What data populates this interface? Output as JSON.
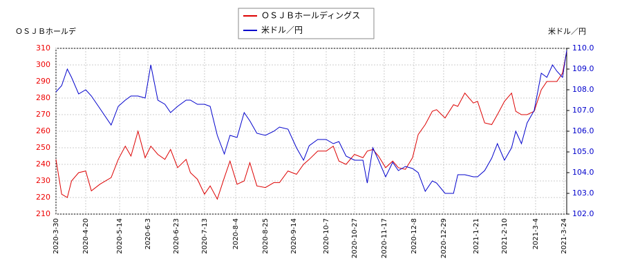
{
  "chart_data": {
    "type": "line",
    "y_label": "ＯＳＪＢホールデ",
    "y2_label": "米ドル／円",
    "x": [
      "2020-3-30",
      "2020-4-3",
      "2020-4-7",
      "2020-4-10",
      "2020-4-15",
      "2020-4-20",
      "2020-4-24",
      "2020-4-30",
      "2020-5-8",
      "2020-5-13",
      "2020-5-18",
      "2020-5-22",
      "2020-5-27",
      "2020-6-1",
      "2020-6-5",
      "2020-6-10",
      "2020-6-15",
      "2020-6-19",
      "2020-6-24",
      "2020-6-30",
      "2020-7-3",
      "2020-7-8",
      "2020-7-13",
      "2020-7-17",
      "2020-7-22",
      "2020-7-27",
      "2020-7-31",
      "2020-8-5",
      "2020-8-10",
      "2020-8-14",
      "2020-8-19",
      "2020-8-25",
      "2020-8-31",
      "2020-9-4",
      "2020-9-10",
      "2020-9-16",
      "2020-9-21",
      "2020-9-25",
      "2020-10-1",
      "2020-10-7",
      "2020-10-12",
      "2020-10-16",
      "2020-10-21",
      "2020-10-27",
      "2020-11-2",
      "2020-11-5",
      "2020-11-9",
      "2020-11-13",
      "2020-11-18",
      "2020-11-23",
      "2020-11-27",
      "2020-12-2",
      "2020-12-7",
      "2020-12-11",
      "2020-12-16",
      "2020-12-21",
      "2020-12-24",
      "2020-12-30",
      "2021-1-5",
      "2021-1-8",
      "2021-1-13",
      "2021-1-19",
      "2021-1-22",
      "2021-1-27",
      "2021-2-1",
      "2021-2-5",
      "2021-2-10",
      "2021-2-15",
      "2021-2-18",
      "2021-2-22",
      "2021-2-26",
      "2021-3-3",
      "2021-3-8",
      "2021-3-12",
      "2021-3-16",
      "2021-3-19",
      "2021-3-23",
      "2021-3-26"
    ],
    "series": [
      {
        "name": "ＯＳＪＢホールディングス",
        "color": "#dd0000",
        "axis": "y",
        "values": [
          243,
          222,
          220,
          230,
          235,
          236,
          224,
          228,
          232,
          243,
          251,
          245,
          260,
          244,
          251,
          246,
          243,
          249,
          238,
          243,
          235,
          231,
          222,
          227,
          219,
          232,
          242,
          228,
          230,
          241,
          227,
          226,
          229,
          229,
          236,
          234,
          240,
          243,
          248,
          248,
          251,
          242,
          240,
          246,
          244,
          248,
          249,
          245,
          238,
          242,
          238,
          237,
          244,
          258,
          264,
          272,
          273,
          268,
          276,
          275,
          283,
          277,
          278,
          265,
          264,
          270,
          278,
          283,
          272,
          270,
          270,
          272,
          285,
          290,
          290,
          290,
          295,
          308
        ]
      },
      {
        "name": "米ドル／円",
        "color": "#0000cc",
        "axis": "y2",
        "values": [
          107.9,
          108.2,
          109.0,
          108.6,
          107.8,
          108.0,
          107.7,
          107.1,
          106.3,
          107.2,
          107.5,
          107.7,
          107.7,
          107.6,
          109.2,
          107.5,
          107.3,
          106.9,
          107.2,
          107.5,
          107.5,
          107.3,
          107.3,
          107.2,
          105.8,
          104.9,
          105.8,
          105.7,
          106.9,
          106.5,
          105.9,
          105.8,
          106.0,
          106.2,
          106.1,
          105.2,
          104.6,
          105.3,
          105.6,
          105.6,
          105.4,
          105.5,
          104.8,
          104.6,
          104.6,
          103.5,
          105.2,
          104.6,
          103.8,
          104.5,
          104.1,
          104.3,
          104.2,
          104.0,
          103.1,
          103.6,
          103.5,
          103.0,
          103.0,
          103.9,
          103.9,
          103.8,
          103.8,
          104.1,
          104.7,
          105.4,
          104.6,
          105.2,
          106.0,
          105.4,
          106.4,
          107.0,
          108.8,
          108.6,
          109.2,
          108.9,
          108.6,
          109.9
        ]
      }
    ],
    "xlim": [
      "2020-3-30",
      "2021-3-26"
    ],
    "xticks": [
      "2020-3-30",
      "2020-4-20",
      "2020-5-14",
      "2020-6-3",
      "2020-6-23",
      "2020-7-13",
      "2020-8-4",
      "2020-8-25",
      "2020-9-14",
      "2020-10-7",
      "2020-10-27",
      "2020-11-17",
      "2020-12-8",
      "2020-12-29",
      "2021-1-21",
      "2021-2-10",
      "2021-3-4",
      "2021-3-24"
    ],
    "ylim": [
      210,
      310
    ],
    "yticks": [
      210,
      220,
      230,
      240,
      250,
      260,
      270,
      280,
      290,
      300,
      310
    ],
    "y2lim": [
      102,
      110
    ],
    "y2ticks": [
      {
        "value": 102,
        "label": "102.0"
      },
      {
        "value": 103,
        "label": "103.0"
      },
      {
        "value": 104,
        "label": "104.0"
      },
      {
        "value": 105,
        "label": "105.0"
      },
      {
        "value": 106,
        "label": "106.0"
      },
      {
        "value": 107,
        "label": "107.0"
      },
      {
        "value": 108,
        "label": "108.0"
      },
      {
        "value": 109,
        "label": "109.0"
      },
      {
        "value": 110,
        "label": "110.0"
      }
    ],
    "grid": true,
    "legend": "top"
  }
}
